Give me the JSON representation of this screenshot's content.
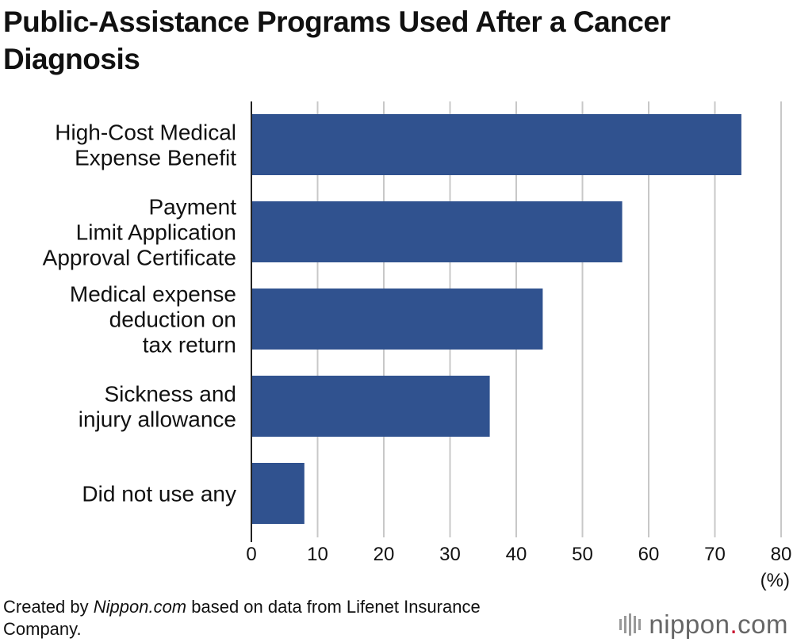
{
  "title": "Public-Assistance Programs Used After a Cancer Diagnosis",
  "chart_data": {
    "type": "bar",
    "orientation": "horizontal",
    "title": "Public-Assistance Programs Used After a Cancer Diagnosis",
    "categories": [
      [
        "High-Cost Medical",
        "Expense Benefit"
      ],
      [
        "Payment",
        "Limit Application",
        "Approval Certificate"
      ],
      [
        "Medical expense",
        "deduction on",
        "tax return"
      ],
      [
        "Sickness and",
        "injury allowance"
      ],
      [
        "Did not use any"
      ]
    ],
    "values": [
      74,
      56,
      44,
      36,
      8
    ],
    "xlim": [
      0,
      80
    ],
    "xticks": [
      0,
      10,
      20,
      30,
      40,
      50,
      60,
      70,
      80
    ],
    "xlabel": "(%)",
    "ylabel": "",
    "grid": true,
    "bar_color": "#30528f",
    "grid_color": "#c8c8c8"
  },
  "footer": {
    "prefix": "Created by ",
    "source_name": "Nippon.com",
    "suffix": " based on data from Lifenet Insurance Company."
  },
  "logo": {
    "brand": "nippon",
    "dot": ".",
    "tld": "com",
    "brand_color": "#666666",
    "dot_color": "#c8102e"
  }
}
